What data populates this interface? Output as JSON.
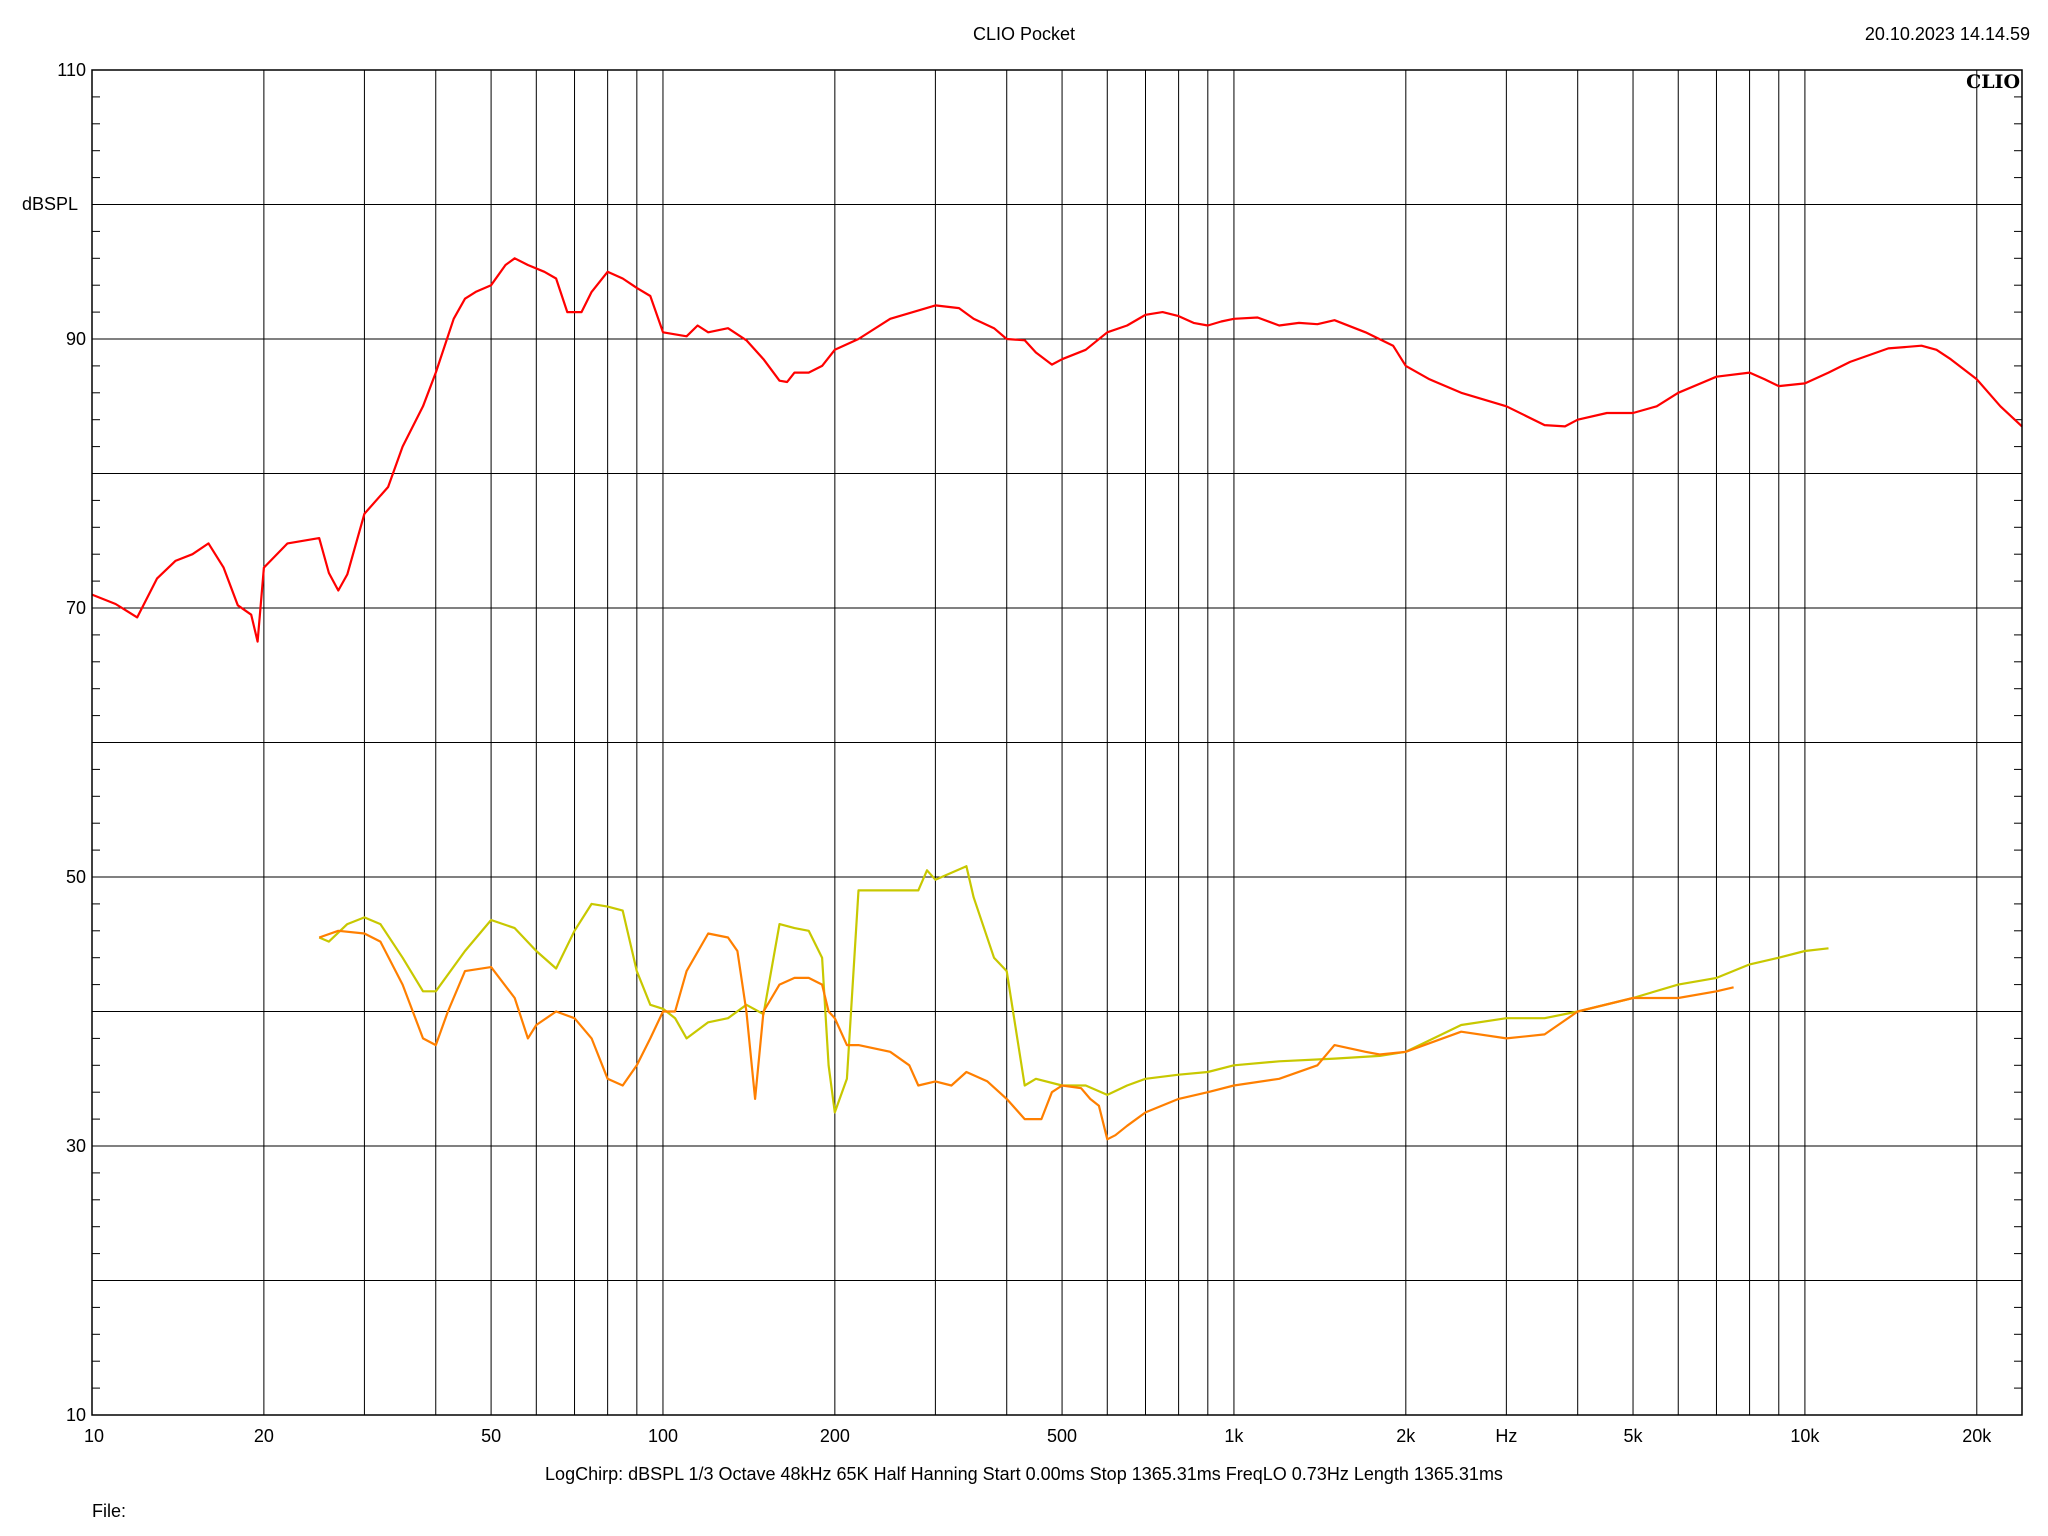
{
  "header": {
    "title": "CLIO Pocket",
    "timestamp": "20.10.2023 14.14.59",
    "brand": "CLIO"
  },
  "footer": {
    "settings": "LogChirp:  dBSPL   1/3 Octave   48kHz   65K   Half Hanning   Start 0.00ms    Stop 1365.31ms    FreqLO 0.73Hz    Length 1365.31ms",
    "file_label": "File:"
  },
  "chart_data": {
    "type": "line",
    "title": "CLIO Pocket",
    "xlabel": "Hz",
    "ylabel": "dBSPL",
    "xscale": "log",
    "xlim": [
      10,
      24000
    ],
    "ylim": [
      10,
      110
    ],
    "grid": true,
    "legend": "none",
    "y_tick_labels": [
      {
        "value": 110,
        "label": "110"
      },
      {
        "value": 90,
        "label": "90"
      },
      {
        "value": 70,
        "label": "70"
      },
      {
        "value": 50,
        "label": "50"
      },
      {
        "value": 30,
        "label": "30"
      },
      {
        "value": 10,
        "label": "10"
      }
    ],
    "x_tick_labels": [
      {
        "value": 10,
        "label": "10"
      },
      {
        "value": 20,
        "label": "20"
      },
      {
        "value": 50,
        "label": "50"
      },
      {
        "value": 100,
        "label": "100"
      },
      {
        "value": 200,
        "label": "200"
      },
      {
        "value": 500,
        "label": "500"
      },
      {
        "value": 1000,
        "label": "1k"
      },
      {
        "value": 2000,
        "label": "2k"
      },
      {
        "value": 5000,
        "label": "5k"
      },
      {
        "value": 10000,
        "label": "10k"
      },
      {
        "value": 20000,
        "label": "20k"
      }
    ],
    "series": [
      {
        "color": "#ff0000",
        "points": [
          [
            10,
            71
          ],
          [
            11,
            70.3
          ],
          [
            12,
            69.3
          ],
          [
            13,
            72.2
          ],
          [
            14,
            73.5
          ],
          [
            15,
            74
          ],
          [
            16,
            74.8
          ],
          [
            17,
            73
          ],
          [
            18,
            70.2
          ],
          [
            19,
            69.5
          ],
          [
            19.5,
            67.5
          ],
          [
            20,
            73
          ],
          [
            22,
            74.8
          ],
          [
            25,
            75.2
          ],
          [
            26,
            72.6
          ],
          [
            27,
            71.3
          ],
          [
            28,
            72.5
          ],
          [
            30,
            77
          ],
          [
            33,
            79
          ],
          [
            35,
            82
          ],
          [
            38,
            85
          ],
          [
            40,
            87.5
          ],
          [
            43,
            91.5
          ],
          [
            45,
            93
          ],
          [
            47,
            93.5
          ],
          [
            50,
            94
          ],
          [
            53,
            95.5
          ],
          [
            55,
            96
          ],
          [
            58,
            95.5
          ],
          [
            62,
            95
          ],
          [
            65,
            94.5
          ],
          [
            68,
            92
          ],
          [
            72,
            92
          ],
          [
            75,
            93.5
          ],
          [
            80,
            95
          ],
          [
            85,
            94.5
          ],
          [
            90,
            93.8
          ],
          [
            95,
            93.2
          ],
          [
            100,
            90.5
          ],
          [
            110,
            90.2
          ],
          [
            115,
            91
          ],
          [
            120,
            90.5
          ],
          [
            130,
            90.8
          ],
          [
            140,
            89.9
          ],
          [
            150,
            88.5
          ],
          [
            160,
            86.9
          ],
          [
            165,
            86.8
          ],
          [
            170,
            87.5
          ],
          [
            180,
            87.5
          ],
          [
            190,
            88
          ],
          [
            200,
            89.2
          ],
          [
            220,
            90
          ],
          [
            250,
            91.5
          ],
          [
            300,
            92.5
          ],
          [
            330,
            92.3
          ],
          [
            350,
            91.5
          ],
          [
            380,
            90.8
          ],
          [
            400,
            90
          ],
          [
            430,
            89.9
          ],
          [
            450,
            89
          ],
          [
            480,
            88.1
          ],
          [
            500,
            88.5
          ],
          [
            550,
            89.2
          ],
          [
            600,
            90.5
          ],
          [
            650,
            91
          ],
          [
            700,
            91.8
          ],
          [
            750,
            92
          ],
          [
            800,
            91.7
          ],
          [
            850,
            91.2
          ],
          [
            900,
            91
          ],
          [
            950,
            91.3
          ],
          [
            1000,
            91.5
          ],
          [
            1100,
            91.6
          ],
          [
            1200,
            91
          ],
          [
            1300,
            91.2
          ],
          [
            1400,
            91.1
          ],
          [
            1500,
            91.4
          ],
          [
            1700,
            90.5
          ],
          [
            1900,
            89.5
          ],
          [
            2000,
            88
          ],
          [
            2200,
            87
          ],
          [
            2500,
            86
          ],
          [
            3000,
            85
          ],
          [
            3500,
            83.6
          ],
          [
            3800,
            83.5
          ],
          [
            4000,
            84
          ],
          [
            4500,
            84.5
          ],
          [
            5000,
            84.5
          ],
          [
            5500,
            85
          ],
          [
            6000,
            86
          ],
          [
            7000,
            87.2
          ],
          [
            8000,
            87.5
          ],
          [
            8500,
            87
          ],
          [
            9000,
            86.5
          ],
          [
            10000,
            86.7
          ],
          [
            11000,
            87.5
          ],
          [
            12000,
            88.3
          ],
          [
            14000,
            89.3
          ],
          [
            16000,
            89.5
          ],
          [
            17000,
            89.2
          ],
          [
            18000,
            88.5
          ],
          [
            20000,
            87
          ],
          [
            22000,
            85
          ],
          [
            24000,
            83.5
          ]
        ]
      },
      {
        "color": "#c8c800",
        "points": [
          [
            25,
            45.5
          ],
          [
            26,
            45.2
          ],
          [
            28,
            46.5
          ],
          [
            30,
            47
          ],
          [
            32,
            46.5
          ],
          [
            35,
            44
          ],
          [
            38,
            41.5
          ],
          [
            40,
            41.5
          ],
          [
            45,
            44.5
          ],
          [
            50,
            46.8
          ],
          [
            55,
            46.2
          ],
          [
            60,
            44.5
          ],
          [
            65,
            43.2
          ],
          [
            70,
            46
          ],
          [
            75,
            48
          ],
          [
            80,
            47.8
          ],
          [
            85,
            47.5
          ],
          [
            90,
            43
          ],
          [
            95,
            40.5
          ],
          [
            100,
            40.2
          ],
          [
            105,
            39.5
          ],
          [
            110,
            38
          ],
          [
            120,
            39.2
          ],
          [
            130,
            39.5
          ],
          [
            140,
            40.5
          ],
          [
            150,
            39.8
          ],
          [
            160,
            46.5
          ],
          [
            170,
            46.2
          ],
          [
            180,
            46
          ],
          [
            190,
            44
          ],
          [
            195,
            36
          ],
          [
            200,
            32.5
          ],
          [
            210,
            35
          ],
          [
            220,
            49
          ],
          [
            240,
            49
          ],
          [
            260,
            49
          ],
          [
            280,
            49
          ],
          [
            290,
            50.5
          ],
          [
            300,
            49.8
          ],
          [
            340,
            50.8
          ],
          [
            350,
            48.5
          ],
          [
            380,
            44
          ],
          [
            400,
            43
          ],
          [
            430,
            34.5
          ],
          [
            450,
            35
          ],
          [
            500,
            34.5
          ],
          [
            550,
            34.5
          ],
          [
            600,
            33.8
          ],
          [
            650,
            34.5
          ],
          [
            700,
            35
          ],
          [
            800,
            35.3
          ],
          [
            900,
            35.5
          ],
          [
            1000,
            36
          ],
          [
            1200,
            36.3
          ],
          [
            1500,
            36.5
          ],
          [
            1800,
            36.7
          ],
          [
            2000,
            37
          ],
          [
            2500,
            39
          ],
          [
            3000,
            39.5
          ],
          [
            3500,
            39.5
          ],
          [
            4000,
            40
          ],
          [
            5000,
            41
          ],
          [
            6000,
            42
          ],
          [
            7000,
            42.5
          ],
          [
            8000,
            43.5
          ],
          [
            9000,
            44
          ],
          [
            10000,
            44.5
          ],
          [
            11000,
            44.7
          ]
        ]
      },
      {
        "color": "#ff7f00",
        "points": [
          [
            25,
            45.5
          ],
          [
            27,
            46
          ],
          [
            30,
            45.8
          ],
          [
            32,
            45.2
          ],
          [
            35,
            42
          ],
          [
            38,
            38
          ],
          [
            40,
            37.5
          ],
          [
            42,
            40
          ],
          [
            45,
            43
          ],
          [
            50,
            43.3
          ],
          [
            55,
            41
          ],
          [
            58,
            38
          ],
          [
            60,
            39
          ],
          [
            65,
            40
          ],
          [
            70,
            39.5
          ],
          [
            75,
            38
          ],
          [
            80,
            35
          ],
          [
            85,
            34.5
          ],
          [
            90,
            36
          ],
          [
            95,
            38
          ],
          [
            100,
            40
          ],
          [
            105,
            40
          ],
          [
            110,
            43
          ],
          [
            120,
            45.8
          ],
          [
            130,
            45.5
          ],
          [
            135,
            44.5
          ],
          [
            140,
            40
          ],
          [
            145,
            33.5
          ],
          [
            150,
            40
          ],
          [
            160,
            42
          ],
          [
            170,
            42.5
          ],
          [
            180,
            42.5
          ],
          [
            190,
            42
          ],
          [
            195,
            40
          ],
          [
            200,
            39.5
          ],
          [
            210,
            37.5
          ],
          [
            220,
            37.5
          ],
          [
            250,
            37
          ],
          [
            270,
            36
          ],
          [
            280,
            34.5
          ],
          [
            300,
            34.8
          ],
          [
            320,
            34.5
          ],
          [
            340,
            35.5
          ],
          [
            370,
            34.8
          ],
          [
            400,
            33.5
          ],
          [
            430,
            32
          ],
          [
            460,
            32
          ],
          [
            480,
            34
          ],
          [
            500,
            34.5
          ],
          [
            540,
            34.3
          ],
          [
            560,
            33.5
          ],
          [
            580,
            33
          ],
          [
            600,
            30.5
          ],
          [
            620,
            30.8
          ],
          [
            650,
            31.5
          ],
          [
            700,
            32.5
          ],
          [
            800,
            33.5
          ],
          [
            900,
            34
          ],
          [
            1000,
            34.5
          ],
          [
            1200,
            35
          ],
          [
            1400,
            36
          ],
          [
            1500,
            37.5
          ],
          [
            1700,
            37
          ],
          [
            1800,
            36.8
          ],
          [
            2000,
            37
          ],
          [
            2500,
            38.5
          ],
          [
            3000,
            38
          ],
          [
            3500,
            38.3
          ],
          [
            4000,
            40
          ],
          [
            5000,
            41
          ],
          [
            6000,
            41
          ],
          [
            7000,
            41.5
          ],
          [
            7500,
            41.8
          ]
        ]
      }
    ]
  }
}
